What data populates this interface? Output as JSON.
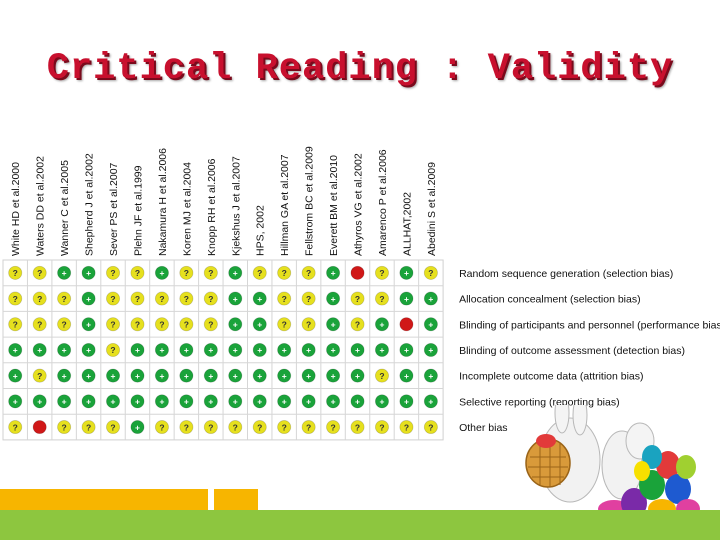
{
  "title": "Critical Reading : Validity",
  "studies": [
    "White HD et al.2000",
    "Waters DD et al.2002",
    "Wanner C et al.2005",
    "Shepherd J et al.2002",
    "Sever PS et al.2007",
    "Plehn JF et al.1999",
    "Nakamura H et al.2006",
    "Koren MJ et al.2004",
    "Knopp RH et al.2006",
    "Kjekshus J et al.2007",
    "HPS, 2002",
    "Hillman GA et al.2007",
    "Fellstrom BC et al.2009",
    "Everett BM et al.2010",
    "Athyros VG et al.2002",
    "Amarenco P et al.2006",
    "ALLHAT,2002",
    "Abedini S et al.2009"
  ],
  "domains": [
    "Random sequence generation (selection bias)",
    "Allocation concealment (selection bias)",
    "Blinding of participants and personnel (performance bias)",
    "Blinding of outcome assessment (detection bias)",
    "Incomplete outcome data (attrition bias)",
    "Selective reporting (reporting bias)",
    "Other bias"
  ],
  "symbols": {
    "low": "+",
    "unclear": "?",
    "high": "−"
  },
  "colors": {
    "low": "#1aa33a",
    "unclear": "#e6e01e",
    "high": "#d01818",
    "title": "#c8102e"
  },
  "ratings": [
    [
      "?",
      "?",
      "+",
      "+",
      "?",
      "?",
      "+",
      "?",
      "?",
      "+",
      "?",
      "?",
      "?",
      "+",
      "high",
      "?",
      "+",
      "?"
    ],
    [
      "?",
      "?",
      "?",
      "+",
      "?",
      "?",
      "?",
      "?",
      "?",
      "+",
      "+",
      "?",
      "?",
      "+",
      "?",
      "?",
      "+",
      "+"
    ],
    [
      "?",
      "?",
      "?",
      "+",
      "?",
      "?",
      "?",
      "?",
      "?",
      "+",
      "+",
      "?",
      "?",
      "+",
      "?",
      "+",
      "high",
      "+"
    ],
    [
      "+",
      "+",
      "+",
      "+",
      "?",
      "+",
      "+",
      "+",
      "+",
      "+",
      "+",
      "+",
      "+",
      "+",
      "+",
      "+",
      "+",
      "+"
    ],
    [
      "+",
      "?",
      "+",
      "+",
      "+",
      "+",
      "+",
      "+",
      "+",
      "+",
      "+",
      "+",
      "+",
      "+",
      "+",
      "?",
      "+",
      "+"
    ],
    [
      "+",
      "+",
      "+",
      "+",
      "+",
      "+",
      "+",
      "+",
      "+",
      "+",
      "+",
      "+",
      "+",
      "+",
      "+",
      "+",
      "+",
      "+"
    ],
    [
      "?",
      "high",
      "?",
      "?",
      "?",
      "+",
      "?",
      "?",
      "?",
      "?",
      "?",
      "?",
      "?",
      "?",
      "?",
      "?",
      "?",
      "?"
    ]
  ]
}
